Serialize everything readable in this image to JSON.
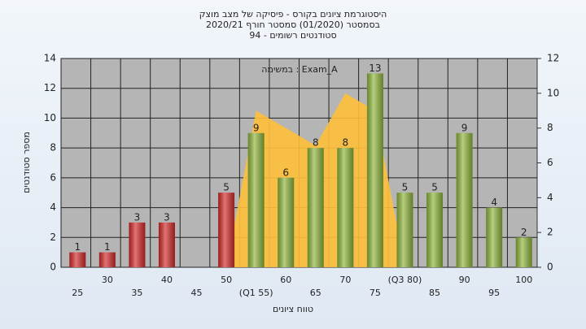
{
  "chart_data": {
    "type": "bar",
    "title": "היסטוגרמת ציונים בקורס - פיסיקה של מצב מוצק",
    "subtitle": "בסמסטר  (01/2020)  סמסטר חורף 2020/21",
    "subtitle2": "סטודנטים רשומים - 94",
    "annotation": "במשימה : Exam_A",
    "x_label": "טווח ציונים",
    "y_label": "מספר סטודנטים",
    "categories": [
      "25",
      "30",
      "35",
      "40",
      "45",
      "50",
      "(Q1 55)",
      "60",
      "65",
      "70",
      "75",
      "(Q3 80)",
      "85",
      "90",
      "95",
      "100"
    ],
    "series": [
      {
        "values": [
          1,
          1,
          3,
          3,
          null,
          5,
          9,
          6,
          8,
          8,
          13,
          5,
          5,
          9,
          4,
          2
        ],
        "colors": [
          "#d42a2a",
          "#d42a2a",
          "#d42a2a",
          "#d42a2a",
          "#d42a2a",
          "#d42a2a",
          "#8fb63c",
          "#8fb63c",
          "#8fb63c",
          "#8fb63c",
          "#8fb63c",
          "#8fb63c",
          "#8fb63c",
          "#8fb63c",
          "#8fb63c",
          "#8fb63c"
        ]
      },
      {
        "type": "area",
        "axis": "y2",
        "color": "#ffc03a",
        "values": [
          null,
          null,
          null,
          null,
          null,
          0,
          9,
          8,
          7,
          10,
          9,
          0,
          null,
          null,
          null,
          null
        ]
      }
    ],
    "ylim": [
      0,
      14
    ],
    "yticks": [
      0,
      2,
      4,
      6,
      8,
      10,
      12,
      14
    ],
    "y2lim": [
      0,
      12
    ],
    "y2ticks": [
      0,
      2,
      4,
      6,
      8,
      10,
      12
    ],
    "grid": true
  }
}
